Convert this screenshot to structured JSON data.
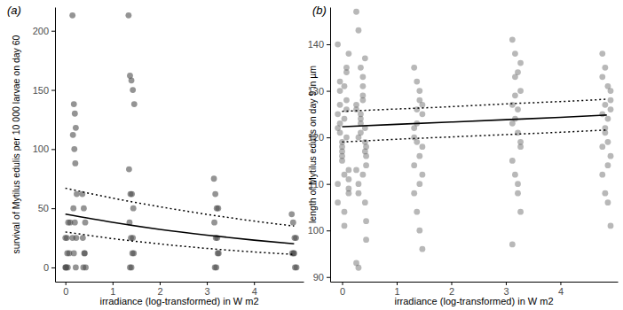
{
  "chart_data": [
    {
      "type": "scatter",
      "title": "(a)",
      "x_label": "irradiance (log-transformed) in W m2",
      "y_label": "survival of Mytilus edulis per 10 000 larvae on day 60",
      "xlim": [
        -0.22,
        5.05
      ],
      "xticks": [
        0,
        1,
        2,
        3,
        4
      ],
      "ylim": [
        -12,
        220
      ],
      "yticks": [
        0,
        50,
        100,
        150,
        200
      ],
      "grid": false,
      "series": [
        {
          "type": "scatter",
          "marker": "circle",
          "color": "#4d4d4d",
          "x": [
            0,
            0.02,
            0.05,
            0.08,
            0,
            0.03,
            0.06,
            0.1,
            0.01,
            0.04,
            0.15,
            0.18,
            0.2,
            0.22,
            0.16,
            0.19,
            0.21,
            0.24,
            0.17,
            0.2,
            0.23,
            0.15,
            0.18,
            0.22,
            0.36,
            0.39,
            0.42,
            0.37,
            0.4,
            0.43,
            0.38,
            0.41,
            1.34,
            1.37,
            1.4,
            1.43,
            1.46,
            1.35,
            1.38,
            1.41,
            1.44,
            1.36,
            1.39,
            1.42,
            1.45,
            1.37,
            1.4,
            1.43,
            3.15,
            3.18,
            3.21,
            3.24,
            3.16,
            3.19,
            3.22,
            3.25,
            3.17,
            3.2,
            3.23,
            4.8,
            4.83,
            4.86,
            4.89,
            4.81,
            4.84,
            4.87,
            4.9,
            4.85
          ],
          "values": [
            0,
            0,
            0,
            12,
            25,
            25,
            38,
            38,
            0,
            12,
            213,
            138,
            130,
            118,
            112,
            100,
            88,
            62,
            50,
            38,
            25,
            25,
            12,
            0,
            62,
            50,
            38,
            25,
            12,
            0,
            0,
            12,
            213,
            162,
            158,
            150,
            138,
            83,
            62,
            62,
            50,
            38,
            25,
            12,
            12,
            0,
            0,
            25,
            75,
            62,
            50,
            50,
            38,
            25,
            25,
            12,
            0,
            0,
            12,
            45,
            38,
            25,
            25,
            12,
            12,
            0,
            0,
            12
          ]
        },
        {
          "type": "line",
          "line_style": "solid",
          "color": "#000000",
          "x": [
            0,
            1,
            2,
            3,
            4,
            4.85
          ],
          "values": [
            45,
            38.1,
            32.2,
            27.3,
            23.1,
            20
          ]
        },
        {
          "type": "line",
          "line_style": "dotted",
          "color": "#000000",
          "x": [
            0,
            1,
            2,
            3,
            4,
            4.85
          ],
          "values": [
            67,
            58.6,
            51.3,
            44.9,
            39.2,
            35
          ]
        },
        {
          "type": "line",
          "line_style": "dotted",
          "color": "#000000",
          "x": [
            0,
            1,
            2,
            3,
            4,
            4.85
          ],
          "values": [
            30,
            24.4,
            19.9,
            16.1,
            13.1,
            11
          ]
        }
      ]
    },
    {
      "type": "scatter",
      "title": "(b)",
      "x_label": "irradiance (log-transformed) in W m2",
      "y_label": "length of Mytilus edulis on day 9 in µm",
      "xlim": [
        -0.22,
        5.05
      ],
      "xticks": [
        0,
        1,
        2,
        3,
        4
      ],
      "ylim": [
        89,
        148
      ],
      "yticks": [
        90,
        100,
        110,
        120,
        130,
        140
      ],
      "grid": false,
      "series": [
        {
          "type": "scatter",
          "marker": "circle",
          "color": "#4d4d4d",
          "x": [
            -0.08,
            -0.04,
            0,
            0.04,
            0.08,
            0.12,
            -0.08,
            -0.04,
            0,
            0.04,
            0.08,
            0.12,
            -0.08,
            -0.04,
            0,
            0.04,
            0.08,
            0.12,
            -0.08,
            -0.04,
            0,
            0.04,
            0.08,
            0.12,
            -0.08,
            -0.04,
            0,
            0.04,
            0.08,
            0.12,
            0.26,
            0.3,
            0.34,
            0.38,
            0.42,
            0.44,
            0.26,
            0.3,
            0.34,
            0.38,
            0.42,
            0.44,
            0.26,
            0.3,
            0.34,
            0.38,
            0.42,
            0.44,
            0.26,
            0.3,
            0.34,
            0.38,
            0.42,
            0.44,
            0.26,
            0.3,
            0.34,
            0.38,
            0.42,
            0.44,
            1.32,
            1.37,
            1.42,
            1.47,
            1.32,
            1.37,
            1.42,
            1.47,
            1.32,
            1.37,
            1.42,
            1.47,
            1.32,
            1.37,
            1.42,
            1.47,
            1.32,
            1.37,
            1.42,
            1.47,
            3.12,
            3.17,
            3.22,
            3.27,
            3.12,
            3.17,
            3.22,
            3.27,
            3.12,
            3.17,
            3.22,
            3.27,
            3.12,
            3.17,
            3.22,
            3.27,
            3.12,
            3.17,
            3.22,
            3.27,
            4.77,
            4.82,
            4.87,
            4.92,
            4.77,
            4.82,
            4.87,
            4.92,
            4.77,
            4.82,
            4.87,
            4.92,
            4.77,
            4.82,
            4.87,
            4.92,
            4.77,
            4.82,
            4.87,
            4.92
          ],
          "values": [
            125,
            130,
            118,
            112,
            135,
            108,
            122,
            127,
            115,
            104,
            120,
            138,
            110,
            132,
            117,
            124,
            128,
            113,
            106,
            121,
            119,
            131,
            126,
            109,
            140,
            123,
            116,
            101,
            134,
            111,
            147,
            143,
            135,
            128,
            122,
            118,
            113,
            108,
            125,
            131,
            119,
            116,
            126,
            110,
            121,
            129,
            106,
            98,
            93,
            92,
            124,
            133,
            117,
            114,
            127,
            120,
            123,
            112,
            137,
            102,
            135,
            132,
            128,
            125,
            122,
            119,
            116,
            112,
            108,
            104,
            100,
            96,
            120,
            126,
            130,
            118,
            114,
            123,
            110,
            127,
            141,
            138,
            134,
            130,
            127,
            124,
            121,
            118,
            115,
            112,
            108,
            104,
            97,
            133,
            126,
            119,
            123,
            129,
            110,
            136,
            138,
            135,
            131,
            128,
            125,
            122,
            119,
            116,
            112,
            108,
            106,
            101,
            133,
            127,
            124,
            130,
            118,
            121,
            114,
            126
          ]
        },
        {
          "type": "line",
          "line_style": "solid",
          "color": "#000000",
          "x": [
            0,
            1,
            2,
            3,
            4,
            4.85
          ],
          "values": [
            122.3,
            122.8,
            123.3,
            123.8,
            124.3,
            124.8
          ]
        },
        {
          "type": "line",
          "line_style": "dotted",
          "color": "#000000",
          "x": [
            0,
            1,
            2,
            3,
            4,
            4.85
          ],
          "values": [
            125.6,
            126.1,
            126.6,
            127.2,
            127.7,
            128.2
          ]
        },
        {
          "type": "line",
          "line_style": "dotted",
          "color": "#000000",
          "x": [
            0,
            1,
            2,
            3,
            4,
            4.85
          ],
          "values": [
            119.0,
            119.6,
            120.1,
            120.6,
            121.1,
            121.6
          ]
        }
      ]
    }
  ]
}
